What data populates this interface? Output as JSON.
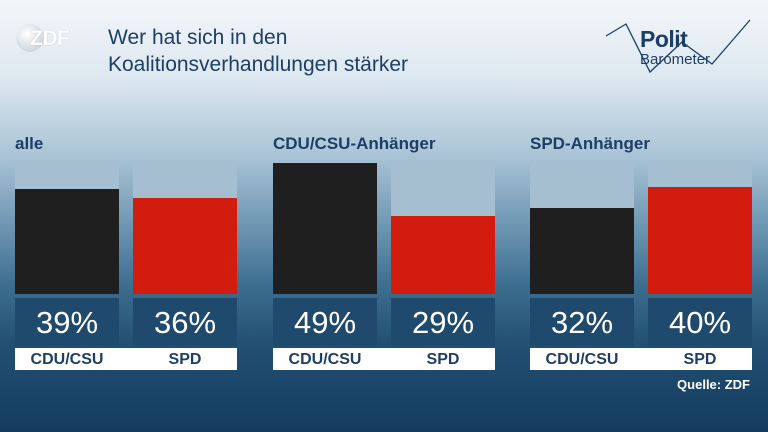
{
  "header": {
    "logo_text": "ZDF",
    "title_line1": "Wer hat sich in den",
    "title_line2": "Koalitionsverhandlungen stärker",
    "brand_polit": "Polit",
    "brand_barometer": "Barometer"
  },
  "chart_data": {
    "type": "bar",
    "ylim": [
      0,
      50
    ],
    "groups": [
      {
        "label": "alle",
        "bars": [
          {
            "party": "CDU/CSU",
            "value": 39,
            "label": "39%",
            "color": "#1f1f1f"
          },
          {
            "party": "SPD",
            "value": 36,
            "label": "36%",
            "color": "#d21c0e"
          }
        ]
      },
      {
        "label": "CDU/CSU-Anhänger",
        "bars": [
          {
            "party": "CDU/CSU",
            "value": 49,
            "label": "49%",
            "color": "#1f1f1f"
          },
          {
            "party": "SPD",
            "value": 29,
            "label": "29%",
            "color": "#d21c0e"
          }
        ]
      },
      {
        "label": "SPD-Anhänger",
        "bars": [
          {
            "party": "CDU/CSU",
            "value": 32,
            "label": "32%",
            "color": "#1f1f1f"
          },
          {
            "party": "SPD",
            "value": 40,
            "label": "40%",
            "color": "#d21c0e"
          }
        ]
      }
    ]
  },
  "footer": {
    "source": "Quelle: ZDF"
  }
}
